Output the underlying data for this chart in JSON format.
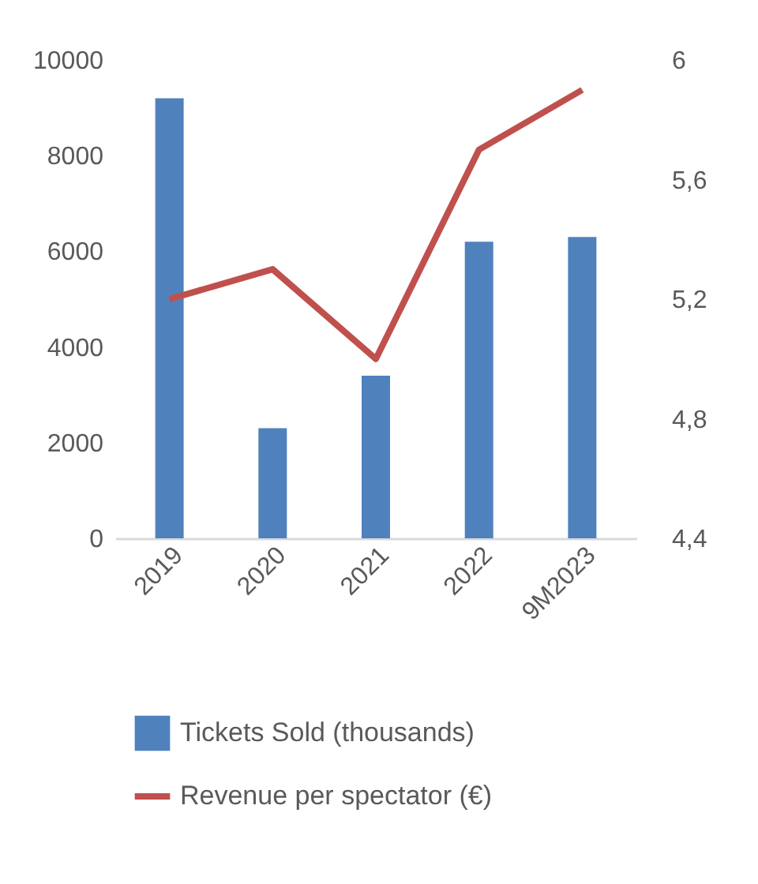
{
  "chart_data": {
    "type": "bar",
    "categories": [
      "2019",
      "2020",
      "2021",
      "2022",
      "9M2023"
    ],
    "series": [
      {
        "name": "Tickets Sold (thousands)",
        "color": "#4f81bd",
        "values": [
          9200,
          2300,
          3400,
          6200,
          6300
        ]
      },
      {
        "name": "Revenue per spectator (€)",
        "type": "line",
        "axis": "y2",
        "color": "#c0504d",
        "values": [
          5.2,
          5.3,
          5.0,
          5.7,
          5.9
        ]
      }
    ],
    "ylim": [
      0,
      10000
    ],
    "yticks": [
      0,
      2000,
      4000,
      6000,
      8000,
      10000
    ],
    "y2lim": [
      4.4,
      6
    ],
    "y2ticks": [
      {
        "value": 4.4,
        "label": "4,4"
      },
      {
        "value": 4.8,
        "label": "4,8"
      },
      {
        "value": 5.2,
        "label": "5,2"
      },
      {
        "value": 5.6,
        "label": "5,6"
      },
      {
        "value": 6,
        "label": "6"
      }
    ],
    "grid": false,
    "legend": "bottom"
  }
}
